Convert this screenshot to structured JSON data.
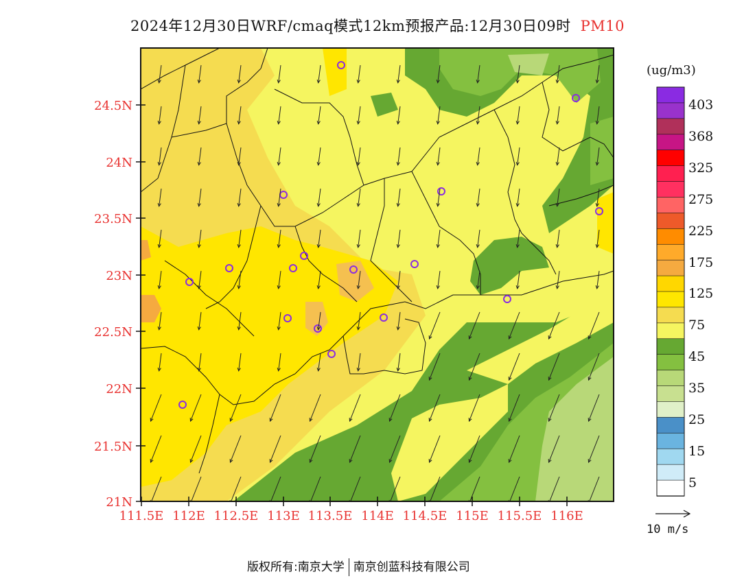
{
  "title": {
    "main": "2024年12月30日WRF/cmaq模式12km预报产品:12月30日09时",
    "variable": "PM10"
  },
  "colors": {
    "accent_red": "#e8302e",
    "axis": "#e8302e"
  },
  "lat_labels": [
    "24.5N",
    "24N",
    "23.5N",
    "23N",
    "22.5N",
    "22N",
    "21.5N",
    "21N"
  ],
  "lon_labels": [
    "111.5E",
    "112E",
    "112.5E",
    "113E",
    "113.5E",
    "114E",
    "114.5E",
    "115E",
    "115.5E",
    "116E"
  ],
  "legend": {
    "unit": "(ug/m3)",
    "labels": [
      "403",
      "368",
      "325",
      "275",
      "225",
      "175",
      "125",
      "75",
      "45",
      "35",
      "25",
      "15",
      "5"
    ],
    "colors": [
      "#8a2be2",
      "#9932cc",
      "#b0305a",
      "#c71585",
      "#ff0000",
      "#ff2050",
      "#ff3060",
      "#ff6464",
      "#ee5a2a",
      "#ff8c00",
      "#ffaa2a",
      "#f5aa40",
      "#ffd700",
      "#ffe600",
      "#f5dc50",
      "#f5f560",
      "#66a832",
      "#84c040",
      "#b8d878",
      "#c8e090",
      "#e0f0c8",
      "#4a90c8",
      "#6ab4e0",
      "#a0d8f0",
      "#d0ecf8",
      "#ffffff"
    ]
  },
  "wind_reference": {
    "label": "10 m/s"
  },
  "footer": {
    "left": "版权所有:南京大学",
    "right": "南京创蓝科技有限公司"
  }
}
